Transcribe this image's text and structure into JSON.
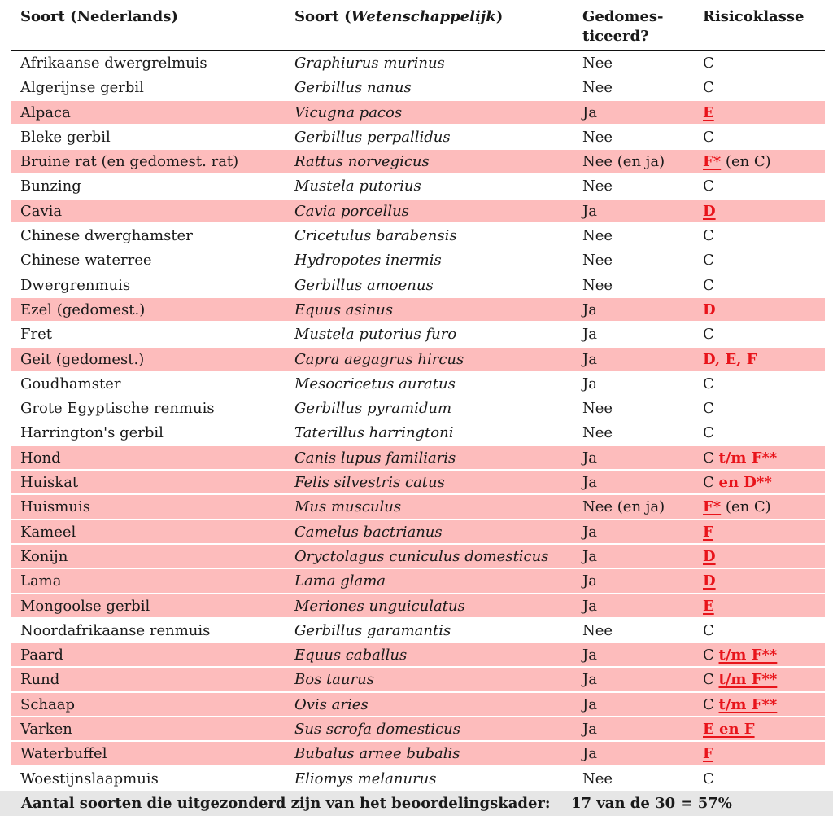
{
  "headers": {
    "col1": "Soort (Nederlands)",
    "col2_prefix": "Soort (",
    "col2_italic": "Wetenschappelijk",
    "col2_suffix": ")",
    "col3_line1": "Gedomes-",
    "col3_line2": "ticeerd?",
    "col4": "Risicoklasse"
  },
  "highlight_color": "#fdbcbc",
  "accent_red": "#e8141b",
  "rows": [
    {
      "nl": "Afrikaanse dwergrelmuis",
      "sci": "Graphiurus murinus",
      "dom": "Nee",
      "risk": [
        {
          "t": "C",
          "s": "plain"
        }
      ],
      "hl": false
    },
    {
      "nl": "Algerijnse gerbil",
      "sci": "Gerbillus nanus",
      "dom": "Nee",
      "risk": [
        {
          "t": "C",
          "s": "plain"
        }
      ],
      "hl": false
    },
    {
      "nl": "Alpaca",
      "sci": "Vicugna pacos",
      "dom": "Ja",
      "risk": [
        {
          "t": "E",
          "s": "red-ul"
        }
      ],
      "hl": true
    },
    {
      "nl": "Bleke gerbil",
      "sci": "Gerbillus perpallidus",
      "dom": "Nee",
      "risk": [
        {
          "t": "C",
          "s": "plain"
        }
      ],
      "hl": false
    },
    {
      "nl": "Bruine rat (en gedomest. rat)",
      "sci": "Rattus norvegicus",
      "dom": "Nee (en ja)",
      "risk": [
        {
          "t": "F*",
          "s": "red-ul"
        },
        {
          "t": " (en C)",
          "s": "plain"
        }
      ],
      "hl": true
    },
    {
      "nl": "Bunzing",
      "sci": "Mustela putorius",
      "dom": "Nee",
      "risk": [
        {
          "t": "C",
          "s": "plain"
        }
      ],
      "hl": false
    },
    {
      "nl": "Cavia",
      "sci": "Cavia porcellus",
      "dom": "Ja",
      "risk": [
        {
          "t": "D",
          "s": "red-ul"
        }
      ],
      "hl": true
    },
    {
      "nl": "Chinese dwerghamster",
      "sci": "Cricetulus barabensis",
      "dom": "Nee",
      "risk": [
        {
          "t": "C",
          "s": "plain"
        }
      ],
      "hl": false
    },
    {
      "nl": "Chinese waterree",
      "sci": "Hydropotes inermis",
      "dom": "Nee",
      "risk": [
        {
          "t": "C",
          "s": "plain"
        }
      ],
      "hl": false
    },
    {
      "nl": "Dwergrenmuis",
      "sci": "Gerbillus amoenus",
      "dom": "Nee",
      "risk": [
        {
          "t": "C",
          "s": "plain"
        }
      ],
      "hl": false
    },
    {
      "nl": "Ezel (gedomest.)",
      "sci": "Equus asinus",
      "dom": "Ja",
      "risk": [
        {
          "t": "D",
          "s": "red"
        }
      ],
      "hl": true
    },
    {
      "nl": "Fret",
      "sci": "Mustela putorius furo",
      "dom": "Ja",
      "risk": [
        {
          "t": "C",
          "s": "plain"
        }
      ],
      "hl": false
    },
    {
      "nl": "Geit (gedomest.)",
      "sci": "Capra aegagrus hircus",
      "dom": "Ja",
      "risk": [
        {
          "t": "D, E, F",
          "s": "red"
        }
      ],
      "hl": true
    },
    {
      "nl": "Goudhamster",
      "sci": "Mesocricetus auratus",
      "dom": "Ja",
      "risk": [
        {
          "t": "C",
          "s": "plain"
        }
      ],
      "hl": false
    },
    {
      "nl": "Grote Egyptische renmuis",
      "sci": "Gerbillus pyramidum",
      "dom": "Nee",
      "risk": [
        {
          "t": "C",
          "s": "plain"
        }
      ],
      "hl": false
    },
    {
      "nl": "Harrington's gerbil",
      "sci": "Taterillus harringtoni",
      "dom": "Nee",
      "risk": [
        {
          "t": "C",
          "s": "plain"
        }
      ],
      "hl": false
    },
    {
      "nl": "Hond",
      "sci": "Canis lupus familiaris",
      "dom": "Ja",
      "risk": [
        {
          "t": "C ",
          "s": "plain"
        },
        {
          "t": "t/m F**",
          "s": "red"
        }
      ],
      "hl": true
    },
    {
      "nl": "Huiskat",
      "sci": "Felis silvestris catus",
      "dom": "Ja",
      "risk": [
        {
          "t": "C ",
          "s": "plain"
        },
        {
          "t": "en D**",
          "s": "red"
        }
      ],
      "hl": true
    },
    {
      "nl": "Huismuis",
      "sci": "Mus musculus",
      "dom": "Nee (en ja)",
      "risk": [
        {
          "t": "F*",
          "s": "red-ul"
        },
        {
          "t": " (en C)",
          "s": "plain"
        }
      ],
      "hl": true
    },
    {
      "nl": "Kameel",
      "sci": "Camelus bactrianus",
      "dom": "Ja",
      "risk": [
        {
          "t": "F",
          "s": "red-ul"
        }
      ],
      "hl": true
    },
    {
      "nl": "Konijn",
      "sci": "Oryctolagus cuniculus domesticus",
      "dom": "Ja",
      "risk": [
        {
          "t": "D",
          "s": "red-ul"
        }
      ],
      "hl": true
    },
    {
      "nl": "Lama",
      "sci": "Lama glama",
      "dom": "Ja",
      "risk": [
        {
          "t": "D",
          "s": "red-ul"
        }
      ],
      "hl": true
    },
    {
      "nl": "Mongoolse gerbil",
      "sci": "Meriones unguiculatus",
      "dom": "Ja",
      "risk": [
        {
          "t": "E",
          "s": "red-ul"
        }
      ],
      "hl": true
    },
    {
      "nl": "Noordafrikaanse renmuis",
      "sci": "Gerbillus garamantis",
      "dom": "Nee",
      "risk": [
        {
          "t": "C",
          "s": "plain"
        }
      ],
      "hl": false
    },
    {
      "nl": "Paard",
      "sci": "Equus caballus",
      "dom": "Ja",
      "risk": [
        {
          "t": "C ",
          "s": "plain"
        },
        {
          "t": "t/m F**",
          "s": "red-ul"
        }
      ],
      "hl": true
    },
    {
      "nl": "Rund",
      "sci": "Bos taurus",
      "dom": "Ja",
      "risk": [
        {
          "t": "C ",
          "s": "plain"
        },
        {
          "t": "t/m F**",
          "s": "red-ul"
        }
      ],
      "hl": true
    },
    {
      "nl": "Schaap",
      "sci": "Ovis aries",
      "dom": "Ja",
      "risk": [
        {
          "t": "C ",
          "s": "plain"
        },
        {
          "t": "t/m F**",
          "s": "red-ul"
        }
      ],
      "hl": true
    },
    {
      "nl": "Varken",
      "sci": "Sus scrofa domesticus",
      "dom": "Ja",
      "risk": [
        {
          "t": "E en F",
          "s": "red-ul"
        }
      ],
      "hl": true
    },
    {
      "nl": "Waterbuffel",
      "sci": "Bubalus arnee bubalis",
      "dom": "Ja",
      "risk": [
        {
          "t": "F",
          "s": "red-ul"
        }
      ],
      "hl": true
    },
    {
      "nl": "Woestijnslaapmuis",
      "sci": "Eliomys melanurus",
      "dom": "Nee",
      "risk": [
        {
          "t": "C",
          "s": "plain"
        }
      ],
      "hl": false
    }
  ],
  "total": {
    "label": "Aantal soorten die uitgezonderd zijn van het beoordelingskader:",
    "value": "17 van de 30 = 57%"
  }
}
